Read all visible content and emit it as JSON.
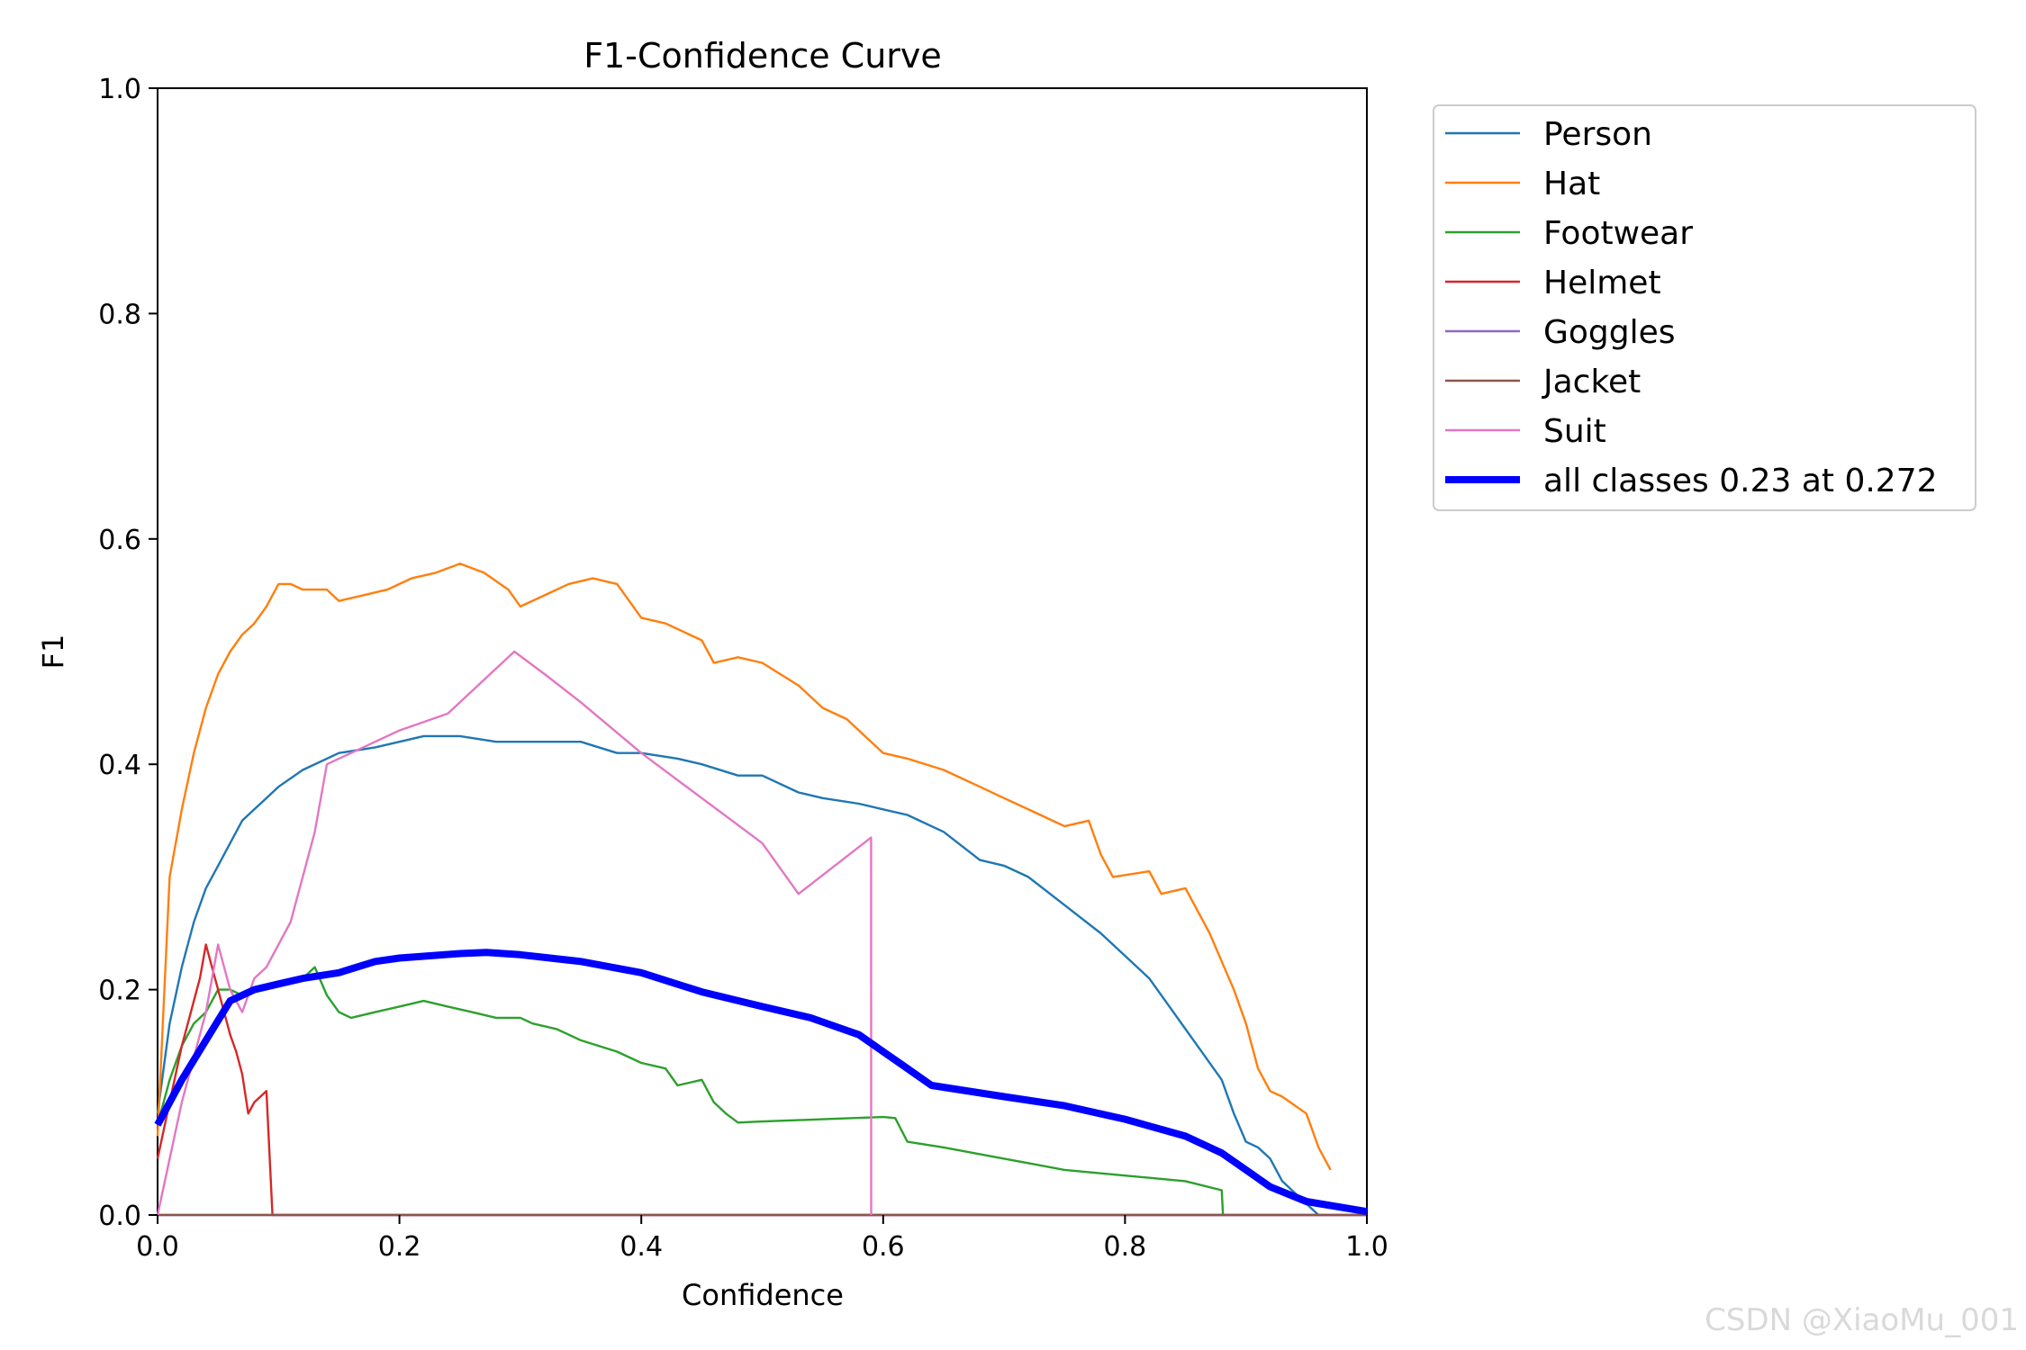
{
  "chart_data": {
    "type": "line",
    "title": "F1-Confidence Curve",
    "xlabel": "Confidence",
    "ylabel": "F1",
    "xlim": [
      0.0,
      1.0
    ],
    "ylim": [
      0.0,
      1.0
    ],
    "xticks": [
      "0.0",
      "0.2",
      "0.4",
      "0.6",
      "0.8",
      "1.0"
    ],
    "yticks": [
      "0.0",
      "0.2",
      "0.4",
      "0.6",
      "0.8",
      "1.0"
    ],
    "grid": false,
    "legend_position": "outside-right-top",
    "series": [
      {
        "name": "Person",
        "color": "#1f77b4",
        "width": "thin",
        "x": [
          0.0,
          0.01,
          0.02,
          0.03,
          0.04,
          0.05,
          0.06,
          0.07,
          0.08,
          0.09,
          0.1,
          0.12,
          0.15,
          0.18,
          0.2,
          0.22,
          0.25,
          0.28,
          0.3,
          0.33,
          0.35,
          0.38,
          0.4,
          0.43,
          0.45,
          0.48,
          0.5,
          0.53,
          0.55,
          0.58,
          0.6,
          0.62,
          0.65,
          0.68,
          0.7,
          0.72,
          0.75,
          0.78,
          0.8,
          0.82,
          0.84,
          0.86,
          0.88,
          0.89,
          0.9,
          0.91,
          0.92,
          0.93,
          0.95,
          0.96
        ],
        "y": [
          0.09,
          0.17,
          0.22,
          0.26,
          0.29,
          0.31,
          0.33,
          0.35,
          0.36,
          0.37,
          0.38,
          0.395,
          0.41,
          0.415,
          0.42,
          0.425,
          0.425,
          0.42,
          0.42,
          0.42,
          0.42,
          0.41,
          0.41,
          0.405,
          0.4,
          0.39,
          0.39,
          0.375,
          0.37,
          0.365,
          0.36,
          0.355,
          0.34,
          0.315,
          0.31,
          0.3,
          0.275,
          0.25,
          0.23,
          0.21,
          0.18,
          0.15,
          0.12,
          0.09,
          0.065,
          0.06,
          0.05,
          0.03,
          0.01,
          0.0
        ]
      },
      {
        "name": "Hat",
        "color": "#ff7f0e",
        "width": "thin",
        "x": [
          0.0,
          0.01,
          0.02,
          0.03,
          0.04,
          0.05,
          0.06,
          0.07,
          0.08,
          0.09,
          0.1,
          0.11,
          0.12,
          0.14,
          0.15,
          0.17,
          0.19,
          0.21,
          0.23,
          0.25,
          0.27,
          0.29,
          0.3,
          0.32,
          0.34,
          0.36,
          0.38,
          0.4,
          0.42,
          0.45,
          0.46,
          0.48,
          0.5,
          0.53,
          0.54,
          0.55,
          0.57,
          0.59,
          0.6,
          0.62,
          0.65,
          0.68,
          0.7,
          0.73,
          0.75,
          0.77,
          0.78,
          0.79,
          0.82,
          0.83,
          0.85,
          0.86,
          0.87,
          0.88,
          0.89,
          0.9,
          0.91,
          0.92,
          0.93,
          0.95,
          0.96,
          0.97
        ],
        "y": [
          0.07,
          0.3,
          0.36,
          0.41,
          0.45,
          0.48,
          0.5,
          0.515,
          0.525,
          0.54,
          0.56,
          0.56,
          0.555,
          0.555,
          0.545,
          0.55,
          0.555,
          0.565,
          0.57,
          0.578,
          0.57,
          0.555,
          0.54,
          0.55,
          0.56,
          0.565,
          0.56,
          0.53,
          0.525,
          0.51,
          0.49,
          0.495,
          0.49,
          0.47,
          0.46,
          0.45,
          0.44,
          0.42,
          0.41,
          0.405,
          0.395,
          0.38,
          0.37,
          0.355,
          0.345,
          0.35,
          0.32,
          0.3,
          0.305,
          0.285,
          0.29,
          0.27,
          0.25,
          0.225,
          0.2,
          0.17,
          0.13,
          0.11,
          0.105,
          0.09,
          0.06,
          0.04
        ]
      },
      {
        "name": "Footwear",
        "color": "#2ca02c",
        "width": "thin",
        "x": [
          0.0,
          0.01,
          0.02,
          0.03,
          0.04,
          0.05,
          0.06,
          0.07,
          0.08,
          0.1,
          0.12,
          0.13,
          0.14,
          0.15,
          0.16,
          0.18,
          0.2,
          0.22,
          0.24,
          0.26,
          0.28,
          0.3,
          0.31,
          0.33,
          0.35,
          0.38,
          0.4,
          0.42,
          0.43,
          0.45,
          0.46,
          0.47,
          0.48,
          0.5,
          0.55,
          0.6,
          0.61,
          0.62,
          0.65,
          0.7,
          0.75,
          0.8,
          0.85,
          0.88,
          0.881
        ],
        "y": [
          0.08,
          0.12,
          0.15,
          0.17,
          0.18,
          0.2,
          0.2,
          0.195,
          0.2,
          0.205,
          0.21,
          0.22,
          0.195,
          0.18,
          0.175,
          0.18,
          0.185,
          0.19,
          0.185,
          0.18,
          0.175,
          0.175,
          0.17,
          0.165,
          0.155,
          0.145,
          0.135,
          0.13,
          0.115,
          0.12,
          0.1,
          0.09,
          0.082,
          0.083,
          0.085,
          0.087,
          0.086,
          0.065,
          0.06,
          0.05,
          0.04,
          0.035,
          0.03,
          0.022,
          0.0
        ]
      },
      {
        "name": "Helmet",
        "color": "#d62728",
        "width": "thin",
        "x": [
          0.0,
          0.01,
          0.02,
          0.025,
          0.03,
          0.035,
          0.04,
          0.045,
          0.05,
          0.055,
          0.06,
          0.065,
          0.07,
          0.075,
          0.08,
          0.085,
          0.09,
          0.095,
          0.1,
          1.0
        ],
        "y": [
          0.05,
          0.1,
          0.15,
          0.17,
          0.19,
          0.21,
          0.24,
          0.22,
          0.2,
          0.18,
          0.16,
          0.145,
          0.125,
          0.09,
          0.1,
          0.105,
          0.11,
          0.0,
          0.0,
          0.0
        ]
      },
      {
        "name": "Goggles",
        "color": "#9467bd",
        "width": "thin",
        "x": [
          0.0,
          1.0
        ],
        "y": [
          0.0,
          0.0
        ]
      },
      {
        "name": "Jacket",
        "color": "#8c564b",
        "width": "thin",
        "x": [
          0.0,
          1.0
        ],
        "y": [
          0.0,
          0.0
        ]
      },
      {
        "name": "Suit",
        "color": "#e377c2",
        "width": "thin",
        "x": [
          0.0,
          0.02,
          0.04,
          0.05,
          0.06,
          0.07,
          0.08,
          0.09,
          0.1,
          0.11,
          0.12,
          0.13,
          0.14,
          0.17,
          0.2,
          0.24,
          0.27,
          0.295,
          0.32,
          0.35,
          0.4,
          0.45,
          0.5,
          0.53,
          0.56,
          0.59,
          0.5901
        ],
        "y": [
          0.0,
          0.1,
          0.18,
          0.24,
          0.2,
          0.18,
          0.21,
          0.22,
          0.24,
          0.26,
          0.3,
          0.34,
          0.4,
          0.415,
          0.43,
          0.445,
          0.475,
          0.5,
          0.48,
          0.455,
          0.41,
          0.37,
          0.33,
          0.285,
          0.31,
          0.335,
          0.0
        ]
      },
      {
        "name": "all classes 0.23 at 0.272",
        "color": "#0000ff",
        "width": "thick",
        "x": [
          0.0,
          0.02,
          0.04,
          0.06,
          0.08,
          0.1,
          0.12,
          0.15,
          0.18,
          0.2,
          0.25,
          0.272,
          0.3,
          0.35,
          0.4,
          0.45,
          0.5,
          0.54,
          0.58,
          0.6,
          0.62,
          0.64,
          0.7,
          0.75,
          0.8,
          0.85,
          0.88,
          0.9,
          0.92,
          0.95,
          1.0
        ],
        "y": [
          0.08,
          0.12,
          0.155,
          0.19,
          0.2,
          0.205,
          0.21,
          0.215,
          0.225,
          0.228,
          0.232,
          0.233,
          0.231,
          0.225,
          0.215,
          0.198,
          0.185,
          0.175,
          0.16,
          0.145,
          0.13,
          0.115,
          0.105,
          0.097,
          0.085,
          0.07,
          0.055,
          0.04,
          0.025,
          0.012,
          0.003
        ]
      }
    ]
  },
  "watermark": "CSDN @XiaoMu_001"
}
